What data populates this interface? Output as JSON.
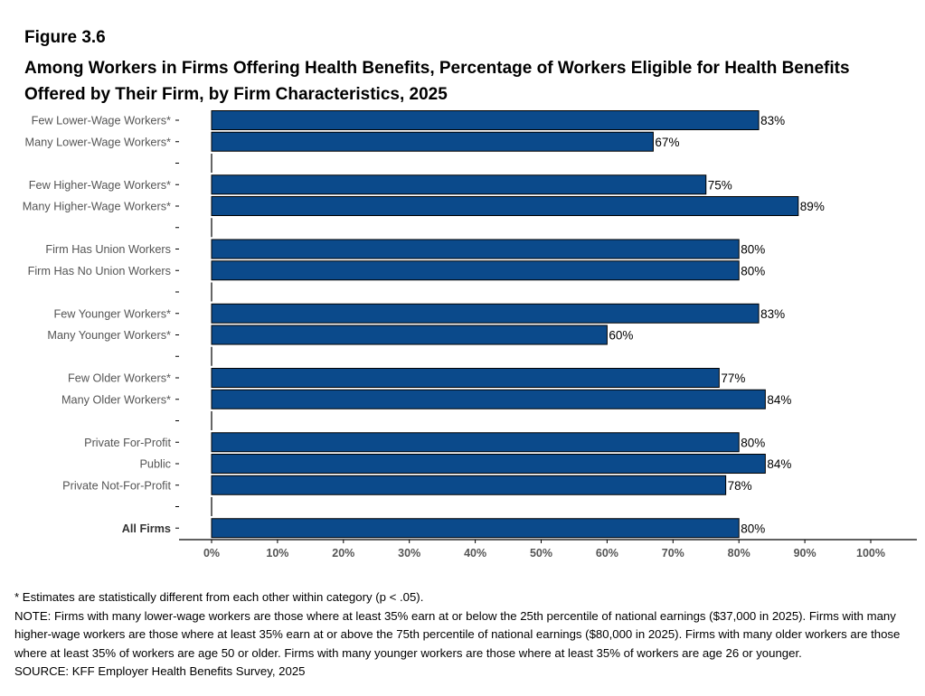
{
  "figure_label": "Figure 3.6",
  "title": "Among Workers in Firms Offering Health Benefits, Percentage of Workers Eligible for Health Benefits Offered by Their Firm, by Firm Characteristics, 2025",
  "colors": {
    "bar": "#0b4a8b",
    "bar_outline": "#000000",
    "axis": "#000000",
    "tick_label": "#555555"
  },
  "chart_data": {
    "type": "bar",
    "orientation": "horizontal",
    "title": "Among Workers in Firms Offering Health Benefits, Percentage of Workers Eligible for Health Benefits Offered by Their Firm, by Firm Characteristics, 2025",
    "xlim": [
      0,
      100
    ],
    "x_ticks": [
      "0%",
      "10%",
      "20%",
      "30%",
      "40%",
      "50%",
      "60%",
      "70%",
      "80%",
      "90%",
      "100%"
    ],
    "grid": false,
    "categories": [
      "Few Lower-Wage Workers*",
      "Many Lower-Wage Workers*",
      "",
      "Few Higher-Wage Workers*",
      "Many Higher-Wage Workers*",
      "",
      "Firm Has Union Workers",
      "Firm Has No Union Workers",
      "",
      "Few Younger Workers*",
      "Many Younger Workers*",
      "",
      "Few Older Workers*",
      "Many Older Workers*",
      "",
      "Private For-Profit",
      "Public",
      "Private Not-For-Profit",
      "",
      "All Firms"
    ],
    "values": [
      83,
      67,
      null,
      75,
      89,
      null,
      80,
      80,
      null,
      83,
      60,
      null,
      77,
      84,
      null,
      80,
      84,
      78,
      null,
      80
    ],
    "value_labels": [
      "83%",
      "67%",
      "",
      "75%",
      "89%",
      "",
      "80%",
      "80%",
      "",
      "83%",
      "60%",
      "",
      "77%",
      "84%",
      "",
      "80%",
      "84%",
      "78%",
      "",
      "80%"
    ],
    "bold_categories": [
      "All Firms"
    ]
  },
  "notes": {
    "asterisk": "* Estimates are statistically different from each other within category (p < .05).",
    "note": "NOTE: Firms with many lower-wage workers are those where at least 35% earn at or below the 25th percentile of national earnings ($37,000 in 2025). Firms with many higher-wage workers are those where at least 35% earn at or above the 75th percentile of national earnings ($80,000 in 2025). Firms with many older workers are those where at least 35% of workers are age 50 or older. Firms with many younger workers are those where at least 35% of workers are age 26 or younger.",
    "source": "SOURCE: KFF Employer Health Benefits Survey, 2025"
  }
}
